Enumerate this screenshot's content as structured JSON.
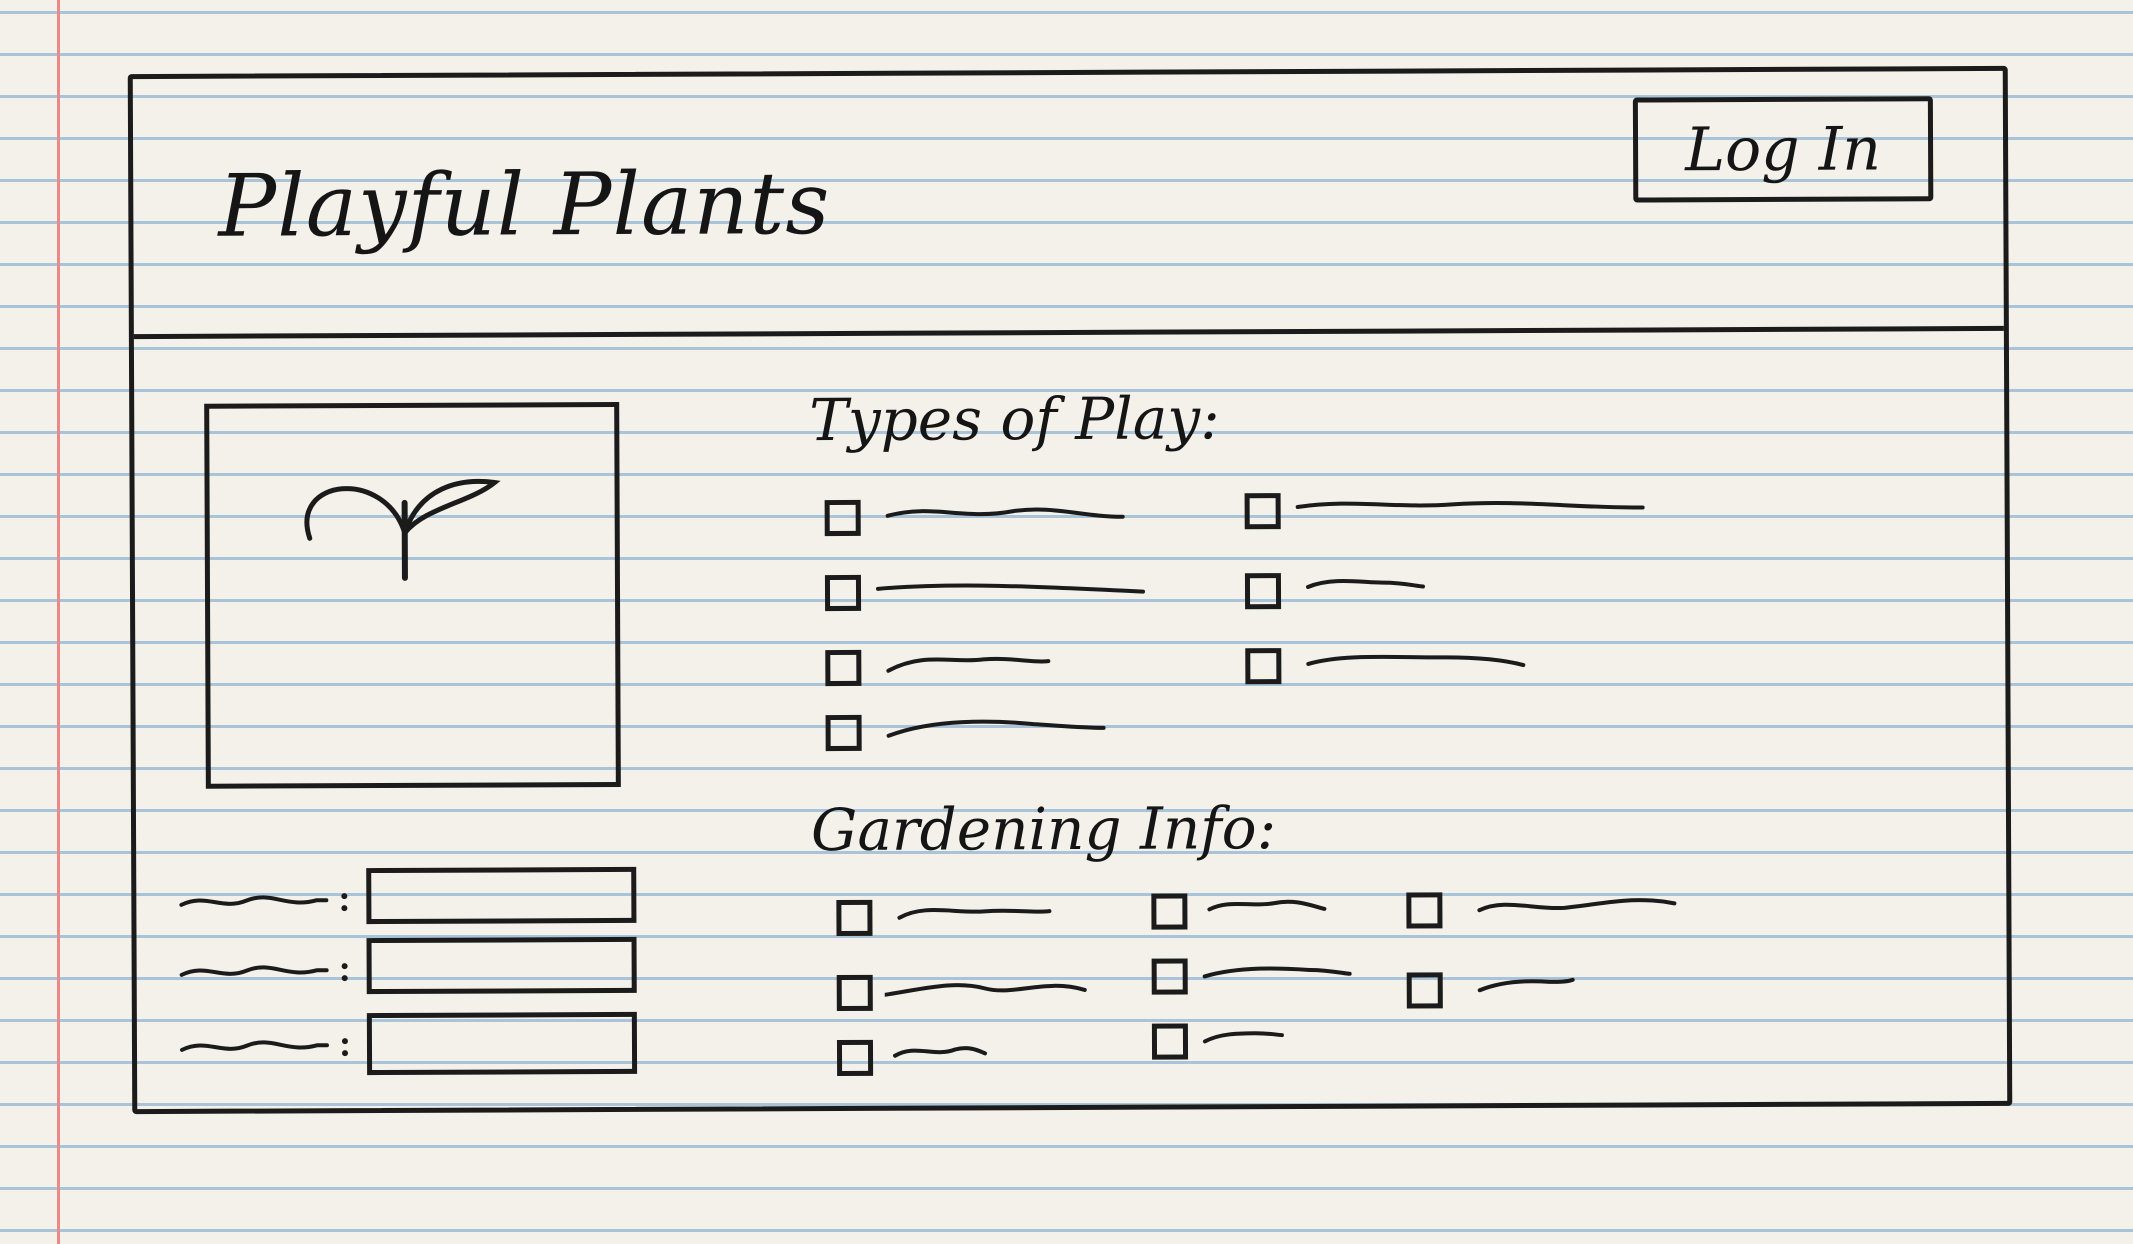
{
  "header": {
    "title": "Playful Plants",
    "login_label": "Log In"
  },
  "sections": {
    "types_of_play": {
      "title": "Types of Play:",
      "item_count": 7
    },
    "gardening_info": {
      "title": "Gardening Info:",
      "item_count": 8
    }
  },
  "image": {
    "icon": "sprout-icon"
  },
  "colors": {
    "ink": "#1b1b1b",
    "paper": "#f3f1ea",
    "rule_line": "#a9c3d9",
    "margin_line": "#e98a86"
  }
}
